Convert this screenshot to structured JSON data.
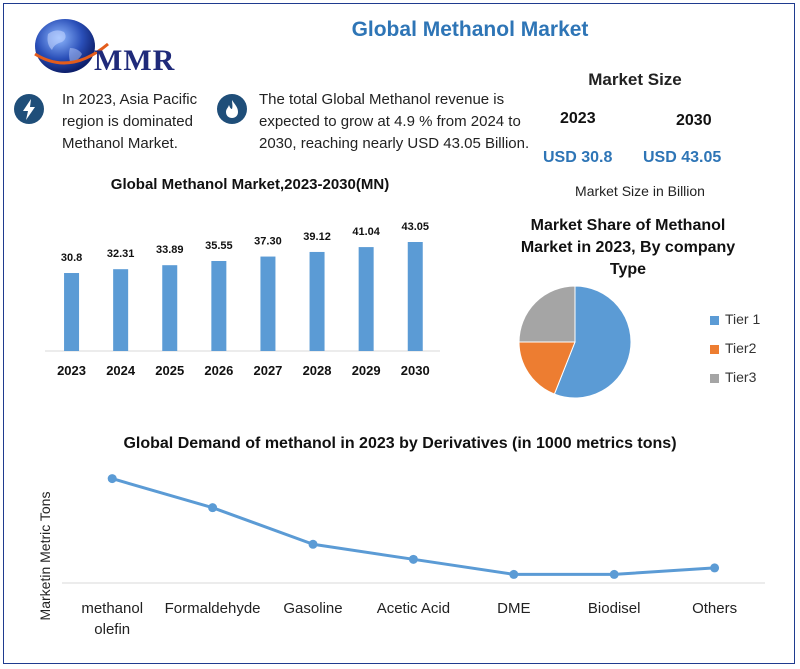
{
  "brand": {
    "logo_text": "MMR"
  },
  "header": {
    "title": "Global Methanol Market"
  },
  "info": [
    {
      "icon": "lightning-icon",
      "text": "In 2023, Asia Pacific region is dominated Methanol Market."
    },
    {
      "icon": "flame-icon",
      "text": "The total Global Methanol revenue is expected to grow at 4.9 % from 2024 to 2030, reaching nearly USD 43.05 Billion."
    }
  ],
  "market_size": {
    "title": "Market Size",
    "year1": "2023",
    "year2": "2030",
    "value1": "USD 30.8",
    "value2": "USD 43.05",
    "note": "Market Size in Billion"
  },
  "colors": {
    "accent": "#2e75b6",
    "bar": "#5b9bd5",
    "tier1": "#5b9bd5",
    "tier2": "#ed7d31",
    "tier3": "#a5a5a5",
    "dark": "#1f4e79"
  },
  "chart_data": [
    {
      "type": "bar",
      "title": "Global Methanol Market,2023-2030(MN)",
      "categories": [
        "2023",
        "2024",
        "2025",
        "2026",
        "2027",
        "2028",
        "2029",
        "2030"
      ],
      "values": [
        30.8,
        32.31,
        33.89,
        35.55,
        37.3,
        39.12,
        41.04,
        43.05
      ],
      "labels": [
        "30.8",
        "32.31",
        "33.89",
        "35.55",
        "37.30",
        "39.12",
        "41.04",
        "43.05"
      ],
      "ylim": [
        0,
        43.05
      ],
      "xlabel": "",
      "ylabel": ""
    },
    {
      "type": "pie",
      "title": "Market Share of Methanol Market in 2023, By company Type",
      "categories": [
        "Tier 1",
        "Tier2",
        "Tier3"
      ],
      "values": [
        56,
        19,
        25
      ],
      "legend": "right"
    },
    {
      "type": "line",
      "title": "Global Demand of methanol in 2023 by Derivatives (in 1000 metrics tons)",
      "categories": [
        "methanol olefin",
        "Formaldehyde",
        "Gasoline",
        "Acetic Acid",
        "DME",
        "Biodisel",
        "Others"
      ],
      "values": [
        97,
        70,
        36,
        22,
        8,
        8,
        14
      ],
      "ylim": [
        0,
        105
      ],
      "ylabel": "Marketin Metric Tons",
      "xlabel": ""
    }
  ]
}
